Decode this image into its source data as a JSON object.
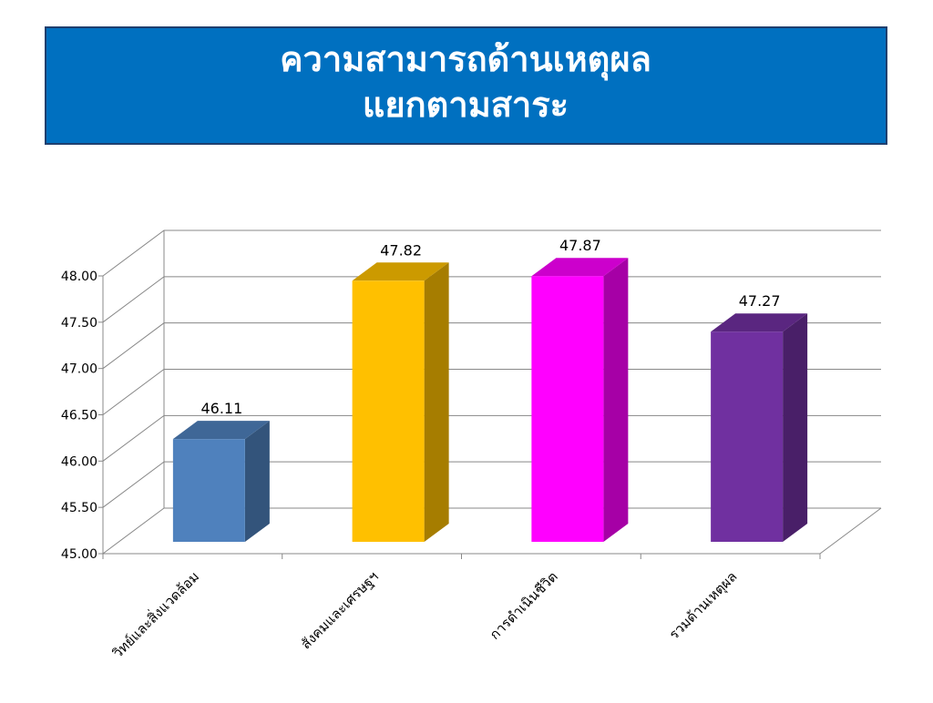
{
  "chart_data": {
    "type": "bar3d",
    "title": [
      "ความสามารถด้านเหตุผล",
      "แยกตามสาระ"
    ],
    "categories": [
      "วิทย์และสิ่งแวดล้อม",
      "สังคมและเศรษฐฯ",
      "การดำเนินชีวิต",
      "รวมด้านเหตุผล"
    ],
    "values": [
      46.11,
      47.82,
      47.87,
      47.27
    ],
    "colors": [
      "#4f81bd",
      "#ffc000",
      "#ff00ff",
      "#7030a0"
    ],
    "ylim": [
      45,
      48
    ],
    "yticks": [
      {
        "value": 45,
        "label": "45.00"
      },
      {
        "value": 45.5,
        "label": "45.50"
      },
      {
        "value": 46,
        "label": "46.00"
      },
      {
        "value": 46.5,
        "label": "46.50"
      },
      {
        "value": 47,
        "label": "47.00"
      },
      {
        "value": 47.5,
        "label": "47.50"
      },
      {
        "value": 48,
        "label": "48.00"
      }
    ],
    "grid": true
  }
}
